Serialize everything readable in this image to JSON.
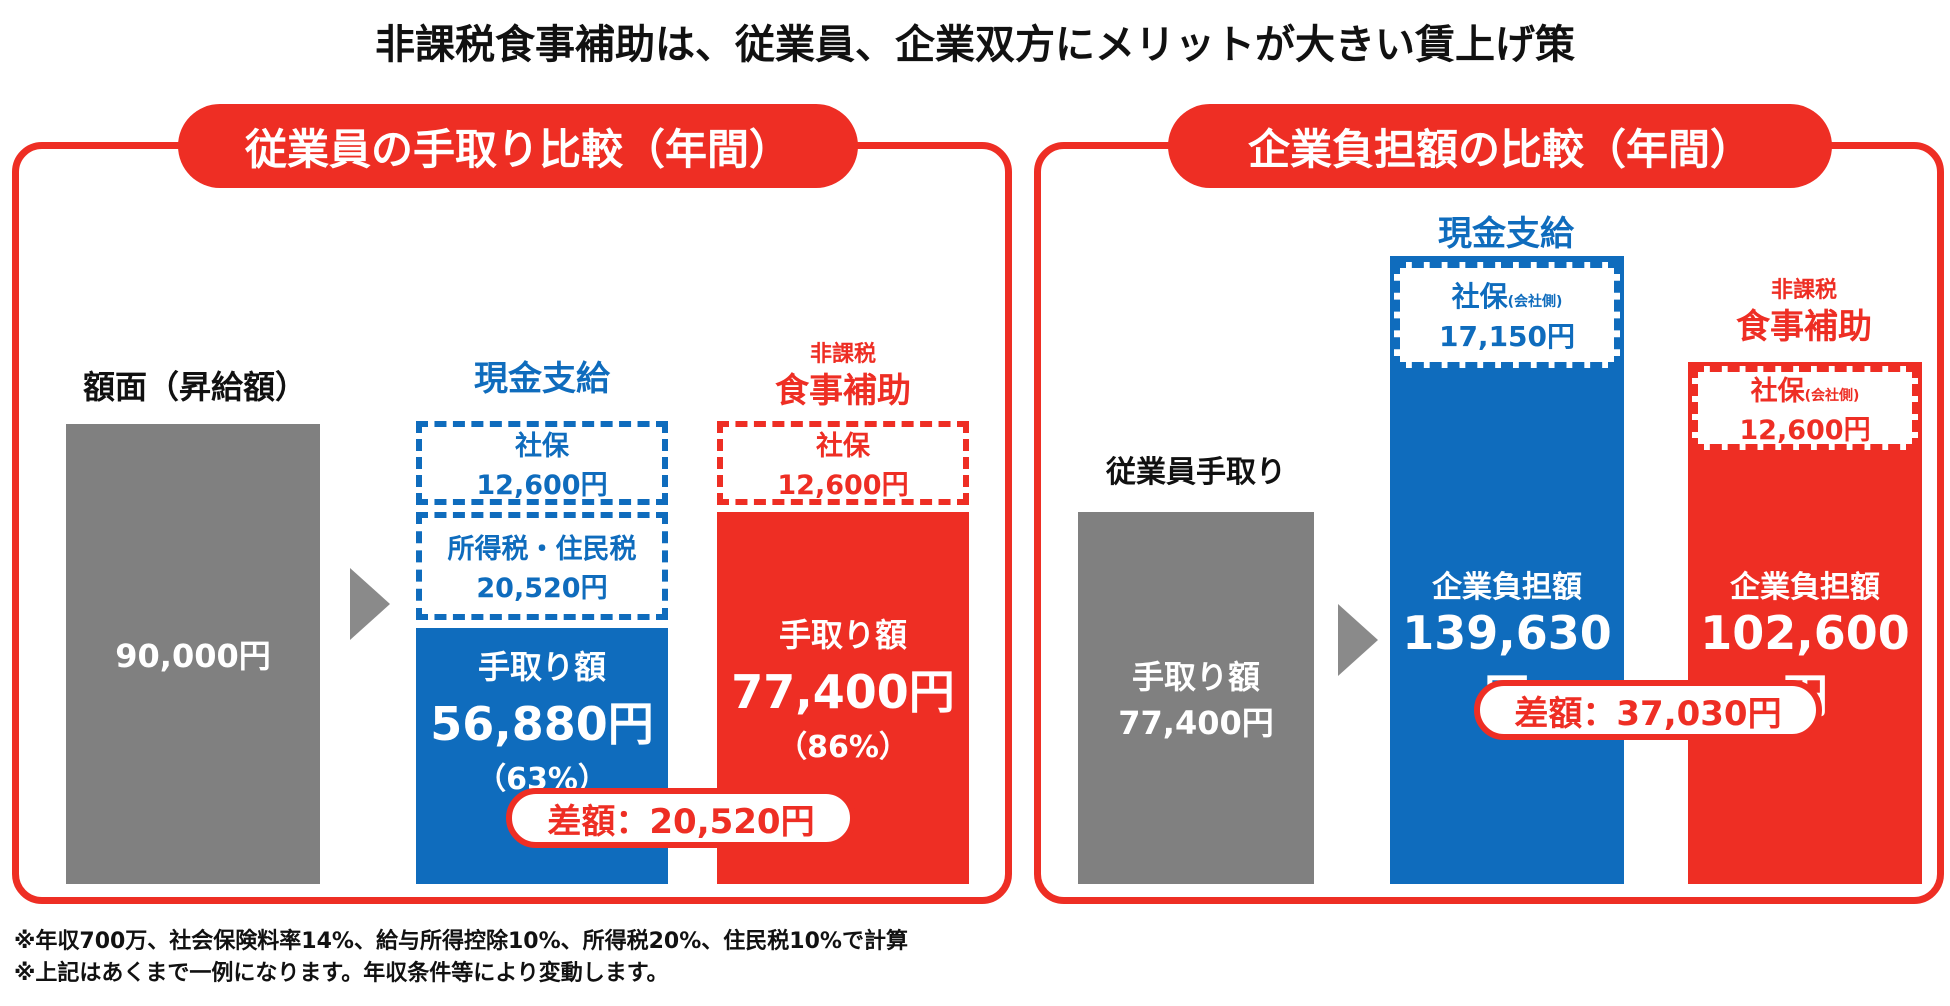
{
  "title": "非課税食事補助は、従業員、企業双方にメリットが大きい賃上げ策",
  "colors": {
    "red": "#ee2e24",
    "blue": "#0f6cbd",
    "gray": "#808080"
  },
  "left_panel": {
    "heading": "従業員の手取り比較（年間）",
    "gross_label": "額面（昇給額）",
    "gross_value": "90,000円",
    "cash_label": "現金支給",
    "cash_shaho": [
      "社保",
      "12,600円"
    ],
    "cash_tax": [
      "所得税・住民税",
      "20,520円"
    ],
    "cash_takehome": [
      "手取り額",
      "56,880円",
      "（63%）"
    ],
    "meal_label_small": "非課税",
    "meal_label": "食事補助",
    "meal_shaho": [
      "社保",
      "12,600円"
    ],
    "meal_takehome": [
      "手取り額",
      "77,400円",
      "（86%）"
    ],
    "diff": "差額：20,520円"
  },
  "right_panel": {
    "heading": "企業負担額の比較（年間）",
    "employee_label": "従業員手取り",
    "employee_bar": [
      "手取り額",
      "77,400円"
    ],
    "cash_label": "現金支給",
    "cash_shaho": [
      "社保",
      "(会社側)",
      "17,150円"
    ],
    "cash_cost": [
      "企業負担額",
      "139,630円"
    ],
    "meal_label_small": "非課税",
    "meal_label": "食事補助",
    "meal_shaho": [
      "社保",
      "(会社側)",
      "12,600円"
    ],
    "meal_cost": [
      "企業負担額",
      "102,600円"
    ],
    "diff": "差額：37,030円"
  },
  "footnotes": [
    "※年収700万、社会保険料率14%、給与所得控除10%、所得税20%、住民税10%で計算",
    "※上記はあくまで一例になります。年収条件等により変動します。"
  ],
  "chart_data": [
    {
      "type": "bar",
      "title": "従業員の手取り比較（年間）",
      "categories": [
        "額面（昇給額）",
        "現金支給",
        "非課税 食事補助"
      ],
      "series": [
        {
          "name": "手取り額",
          "values": [
            90000,
            56880,
            77400
          ]
        },
        {
          "name": "社保",
          "values": [
            0,
            12600,
            12600
          ]
        },
        {
          "name": "所得税・住民税",
          "values": [
            0,
            20520,
            0
          ]
        }
      ],
      "annotations": [
        "（63%）",
        "（86%）",
        "差額：20,520円"
      ]
    },
    {
      "type": "bar",
      "title": "企業負担額の比較（年間）",
      "categories": [
        "従業員手取り",
        "現金支給",
        "非課税 食事補助"
      ],
      "series": [
        {
          "name": "手取り額",
          "values": [
            77400,
            0,
            0
          ]
        },
        {
          "name": "企業負担額",
          "values": [
            0,
            139630,
            102600
          ]
        },
        {
          "name": "社保(会社側)",
          "values": [
            0,
            17150,
            12600
          ]
        }
      ],
      "annotations": [
        "差額：37,030円"
      ]
    }
  ]
}
